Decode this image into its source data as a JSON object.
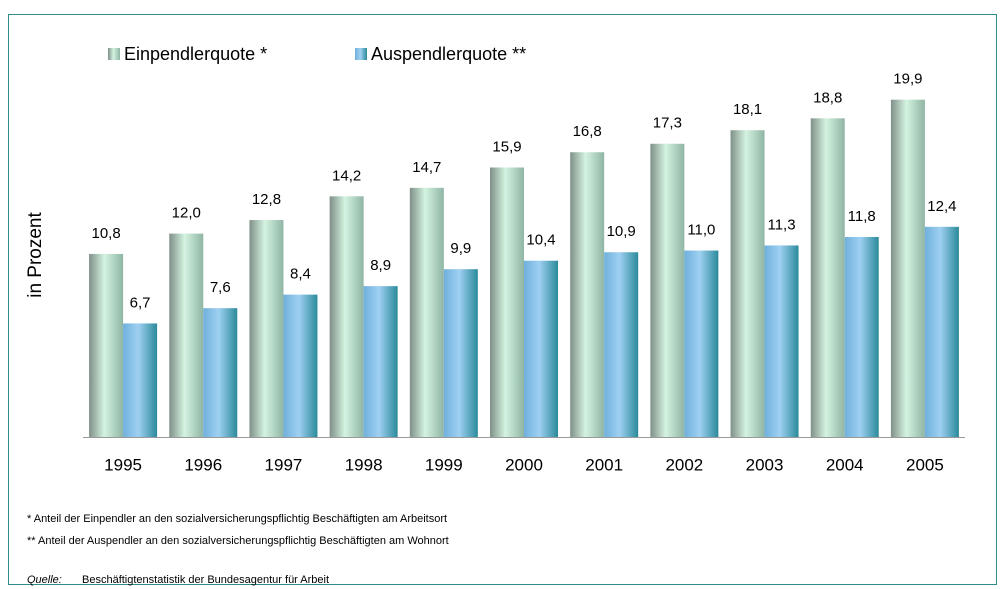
{
  "chart_data": {
    "type": "bar",
    "y_label": "in Prozent",
    "categories": [
      "1995",
      "1996",
      "1997",
      "1998",
      "1999",
      "2000",
      "2001",
      "2002",
      "2003",
      "2004",
      "2005"
    ],
    "series": [
      {
        "name": "Einpendlerquote *",
        "color": "#d4f3e0",
        "values": [
          10.8,
          12.0,
          12.8,
          14.2,
          14.7,
          15.9,
          16.8,
          17.3,
          18.1,
          18.8,
          19.9
        ],
        "value_labels": [
          "10,8",
          "12,0",
          "12,8",
          "14,2",
          "14,7",
          "15,9",
          "16,8",
          "17,3",
          "18,1",
          "18,8",
          "19,9"
        ]
      },
      {
        "name": "Auspendlerquote **",
        "color": "#9fd0f2",
        "values": [
          6.7,
          7.6,
          8.4,
          8.9,
          9.9,
          10.4,
          10.9,
          11.0,
          11.3,
          11.8,
          12.4
        ],
        "value_labels": [
          "6,7",
          "7,6",
          "8,4",
          "8,9",
          "9,9",
          "10,4",
          "10,9",
          "11,0",
          "11,3",
          "11,8",
          "12,4"
        ]
      }
    ],
    "ylim": [
      0,
      20
    ],
    "footnotes": [
      "*  Anteil der Einpendler an den sozialversicherungspflichtig Beschäftigten am Arbeitsort",
      "** Anteil der Auspendler an den sozialversicherungspflichtig Beschäftigten am Wohnort"
    ],
    "source_label": "Quelle:",
    "source": "Beschäftigtenstatistik der Bundesagentur für Arbeit"
  }
}
